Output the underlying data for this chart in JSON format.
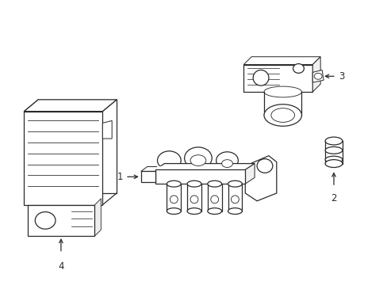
{
  "background_color": "#ffffff",
  "fig_width": 4.89,
  "fig_height": 3.6,
  "dpi": 100,
  "line_color": "#2a2a2a",
  "line_width": 0.9,
  "font_size": 8.5
}
